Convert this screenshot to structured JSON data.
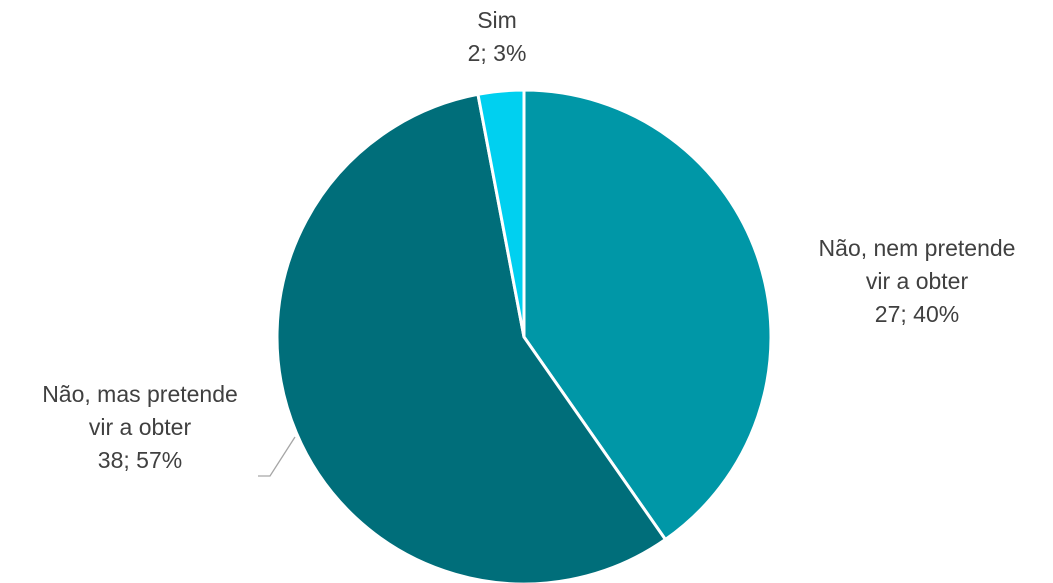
{
  "chart_data": {
    "type": "pie",
    "title": "",
    "start_angle_deg": 0,
    "direction": "clockwise",
    "slice_border_color": "#ffffff",
    "label_color": "#404040",
    "leader_line_color": "#a6a6a6",
    "slices": [
      {
        "category": "Não, nem pretende vir a obter",
        "label_lines": [
          "Não, nem pretende",
          "vir a obter"
        ],
        "value": 27,
        "percent_label": "40%",
        "data_label": "27; 40%",
        "color": "#0097A7"
      },
      {
        "category": "Não, mas pretende vir a obter",
        "label_lines": [
          "Não, mas pretende",
          "vir a obter"
        ],
        "value": 38,
        "percent_label": "57%",
        "data_label": "38; 57%",
        "color": "#006E7A"
      },
      {
        "category": "Sim",
        "label_lines": [
          "Sim"
        ],
        "value": 2,
        "percent_label": "3%",
        "data_label": "2; 3%",
        "color": "#00D0F0"
      }
    ]
  }
}
